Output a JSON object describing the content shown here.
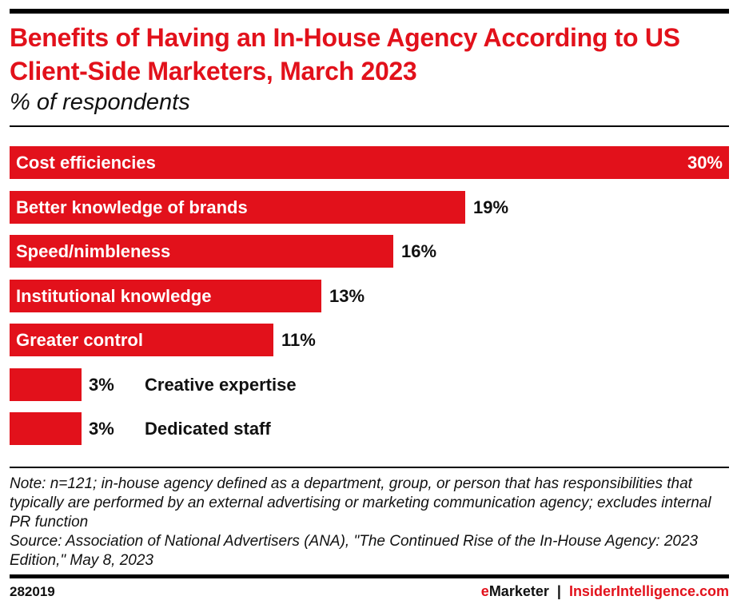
{
  "chart_data": {
    "type": "bar",
    "orientation": "horizontal",
    "title": "Benefits of Having an In-House Agency According to US Client-Side Marketers, March 2023",
    "subtitle": "% of respondents",
    "categories": [
      "Cost efficiencies",
      "Better knowledge of brands",
      "Speed/nimbleness",
      "Institutional knowledge",
      "Greater control",
      "Creative expertise",
      "Dedicated staff"
    ],
    "values": [
      30,
      19,
      16,
      13,
      11,
      3,
      3
    ],
    "value_labels": [
      "30%",
      "19%",
      "16%",
      "13%",
      "11%",
      "3%",
      "3%"
    ],
    "xlim": [
      0,
      30
    ],
    "color": "#e2111b",
    "grid": false
  },
  "notes": {
    "note": "Note: n=121; in-house agency defined as a department, group, or person that has responsibilities that typically are performed by an external advertising or marketing communication agency; excludes internal PR function",
    "source": "Source: Association of National Advertisers (ANA), \"The Continued Rise of the In-House Agency: 2023 Edition,\" May 8, 2023"
  },
  "footer": {
    "chart_id": "282019",
    "brand_e": "e",
    "brand_rest": "Marketer",
    "separator": "|",
    "site": "InsiderIntelligence.com"
  }
}
